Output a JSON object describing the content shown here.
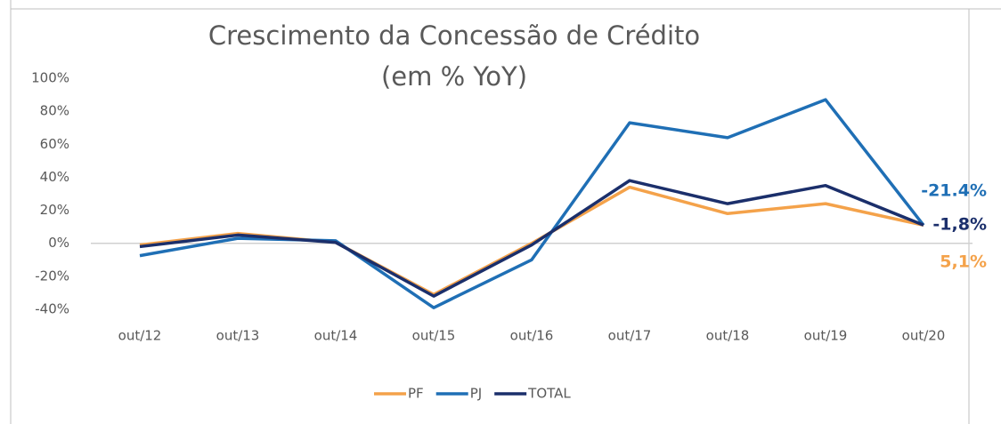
{
  "chart_data": {
    "type": "line",
    "title": "Crescimento da Concessão de Crédito",
    "subtitle": "(em % YoY)",
    "categories": [
      "out/12",
      "out/13",
      "out/14",
      "out/15",
      "out/16",
      "out/17",
      "out/18",
      "out/19",
      "out/20"
    ],
    "series": [
      {
        "name": "PF",
        "color": "#f4a24a",
        "values": [
          -1,
          6,
          0.5,
          -31,
          0,
          34,
          18,
          24,
          11
        ]
      },
      {
        "name": "PJ",
        "color": "#1f6fb5",
        "values": [
          -7.5,
          3,
          1.5,
          -39,
          -10,
          73,
          64,
          87,
          11
        ]
      },
      {
        "name": "TOTAL",
        "color": "#1b2f6b",
        "values": [
          -2,
          5,
          0.5,
          -32,
          -1,
          38,
          24,
          35,
          11
        ]
      }
    ],
    "ylim": [
      -40,
      100
    ],
    "yticks": [
      {
        "value": -40,
        "label": "-40%"
      },
      {
        "value": -20,
        "label": "-20%"
      },
      {
        "value": 0,
        "label": "0%"
      },
      {
        "value": 20,
        "label": "20%"
      },
      {
        "value": 40,
        "label": "40%"
      },
      {
        "value": 60,
        "label": "60%"
      },
      {
        "value": 80,
        "label": "80%"
      },
      {
        "value": 100,
        "label": "100%"
      }
    ],
    "annotations": [
      {
        "text": "-21.4%",
        "color": "#1f6fb5"
      },
      {
        "text": "-1,8%",
        "color": "#1b2f6b"
      },
      {
        "text": "5,1%",
        "color": "#f4a24a"
      }
    ],
    "legend": "bottom"
  }
}
